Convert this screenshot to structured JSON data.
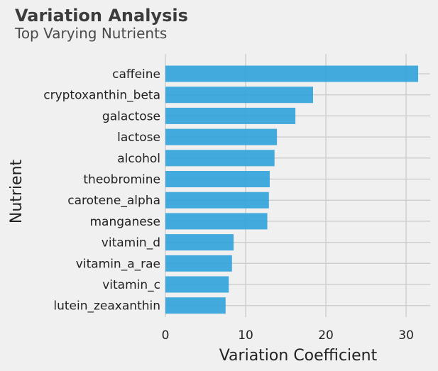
{
  "chart_data": {
    "type": "bar",
    "orientation": "horizontal",
    "title": "Variation Analysis",
    "subtitle": "Top Varying Nutrients",
    "xlabel": "Variation Coefficient",
    "ylabel": "Nutrient",
    "categories": [
      "caffeine",
      "cryptoxanthin_beta",
      "galactose",
      "lactose",
      "alcohol",
      "theobromine",
      "carotene_alpha",
      "manganese",
      "vitamin_d",
      "vitamin_a_rae",
      "vitamin_c",
      "lutein_zeaxanthin"
    ],
    "values": [
      31.5,
      18.4,
      16.2,
      13.9,
      13.6,
      13.0,
      12.9,
      12.7,
      8.5,
      8.3,
      7.9,
      7.5
    ],
    "xlim": [
      0,
      33
    ],
    "xticks": [
      0,
      10,
      20,
      30
    ],
    "grid": true,
    "bar_color": "#30a2da"
  }
}
